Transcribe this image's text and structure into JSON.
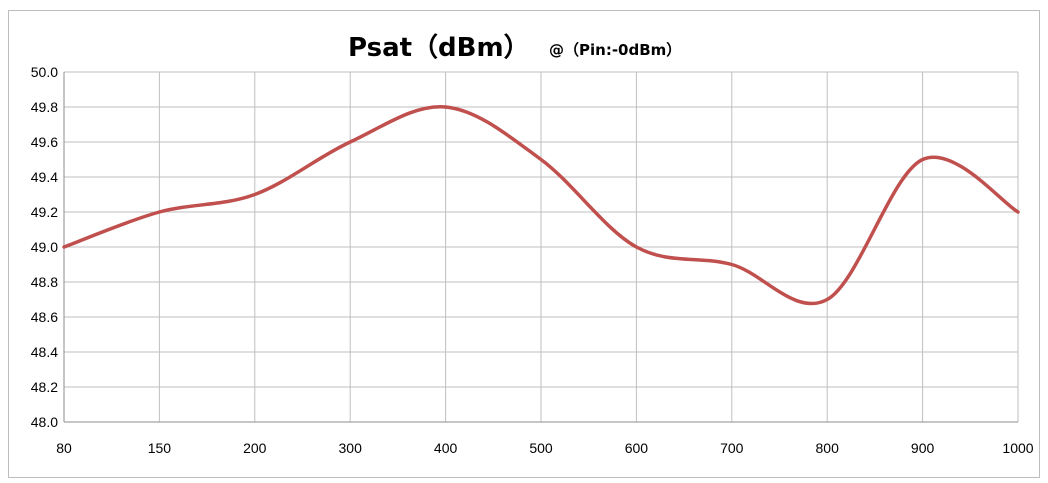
{
  "chart_data": {
    "type": "line",
    "title": "Psat（dBm）",
    "subtitle": "@（Pin:-0dBm）",
    "xlabel": "",
    "ylabel": "",
    "x": [
      "80",
      "150",
      "200",
      "300",
      "400",
      "500",
      "600",
      "700",
      "800",
      "900",
      "1000"
    ],
    "series": [
      {
        "values": [
          49.0,
          49.2,
          49.3,
          49.6,
          49.8,
          49.5,
          49.0,
          48.9,
          48.7,
          49.5,
          49.2
        ],
        "color": "#c0504d"
      }
    ],
    "ylim": [
      48.0,
      50.0
    ],
    "yticks": [
      "50.0",
      "49.8",
      "49.6",
      "49.4",
      "49.2",
      "49.0",
      "48.8",
      "48.6",
      "48.4",
      "48.2",
      "48.0"
    ],
    "grid": true,
    "legend": "none"
  }
}
